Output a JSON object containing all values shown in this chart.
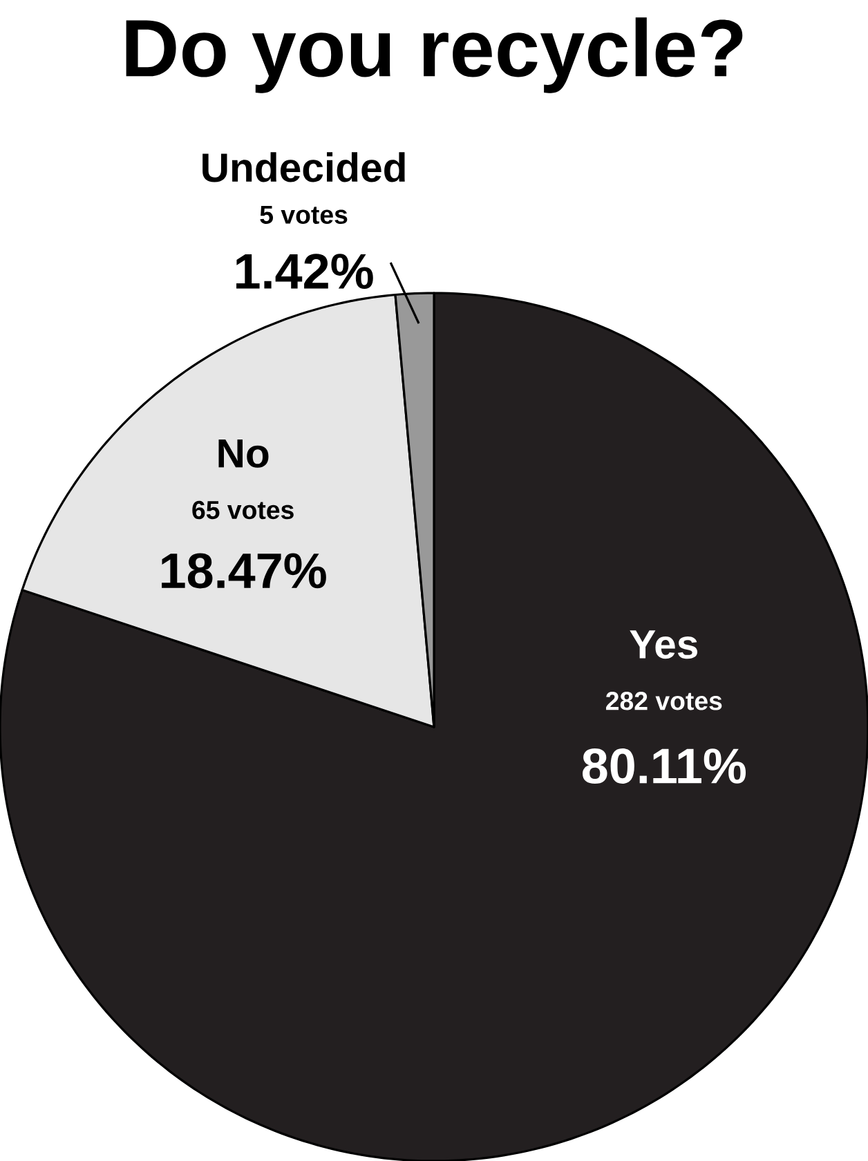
{
  "chart_data": {
    "type": "pie",
    "title": "Do you recycle?",
    "categories": [
      "Yes",
      "No",
      "Undecided"
    ],
    "values": [
      282,
      65,
      5
    ],
    "value_labels": [
      "282 votes",
      "65 votes",
      "5 votes"
    ],
    "annotations": [
      "80.11%",
      "18.47%",
      "1.42%"
    ],
    "colors": [
      "#231f20",
      "#e6e6e6",
      "#999999"
    ]
  }
}
